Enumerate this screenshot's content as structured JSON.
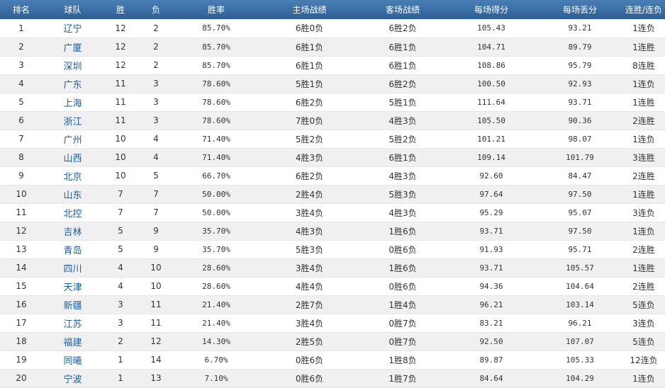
{
  "headers": [
    "排名",
    "球队",
    "胜",
    "负",
    "胜率",
    "主场战绩",
    "客场战绩",
    "每场得分",
    "每场丢分",
    "连胜/连负"
  ],
  "rows": [
    {
      "rank": "1",
      "team": "辽宁",
      "wins": "12",
      "losses": "2",
      "pct": "85.70%",
      "home": "6胜0负",
      "away": "6胜2负",
      "ppg": "105.43",
      "papg": "93.21",
      "streak": "1连负"
    },
    {
      "rank": "2",
      "team": "广厦",
      "wins": "12",
      "losses": "2",
      "pct": "85.70%",
      "home": "6胜1负",
      "away": "6胜1负",
      "ppg": "104.71",
      "papg": "89.79",
      "streak": "1连胜"
    },
    {
      "rank": "3",
      "team": "深圳",
      "wins": "12",
      "losses": "2",
      "pct": "85.70%",
      "home": "6胜1负",
      "away": "6胜1负",
      "ppg": "108.86",
      "papg": "95.79",
      "streak": "8连胜"
    },
    {
      "rank": "4",
      "team": "广东",
      "wins": "11",
      "losses": "3",
      "pct": "78.60%",
      "home": "5胜1负",
      "away": "6胜2负",
      "ppg": "100.50",
      "papg": "92.93",
      "streak": "1连负"
    },
    {
      "rank": "5",
      "team": "上海",
      "wins": "11",
      "losses": "3",
      "pct": "78.60%",
      "home": "6胜2负",
      "away": "5胜1负",
      "ppg": "111.64",
      "papg": "93.71",
      "streak": "1连胜"
    },
    {
      "rank": "6",
      "team": "浙江",
      "wins": "11",
      "losses": "3",
      "pct": "78.60%",
      "home": "7胜0负",
      "away": "4胜3负",
      "ppg": "105.50",
      "papg": "90.36",
      "streak": "2连胜"
    },
    {
      "rank": "7",
      "team": "广州",
      "wins": "10",
      "losses": "4",
      "pct": "71.40%",
      "home": "5胜2负",
      "away": "5胜2负",
      "ppg": "101.21",
      "papg": "98.07",
      "streak": "1连负"
    },
    {
      "rank": "8",
      "team": "山西",
      "wins": "10",
      "losses": "4",
      "pct": "71.40%",
      "home": "4胜3负",
      "away": "6胜1负",
      "ppg": "109.14",
      "papg": "101.79",
      "streak": "3连胜"
    },
    {
      "rank": "9",
      "team": "北京",
      "wins": "10",
      "losses": "5",
      "pct": "66.70%",
      "home": "6胜2负",
      "away": "4胜3负",
      "ppg": "92.60",
      "papg": "84.47",
      "streak": "2连胜"
    },
    {
      "rank": "10",
      "team": "山东",
      "wins": "7",
      "losses": "7",
      "pct": "50.00%",
      "home": "2胜4负",
      "away": "5胜3负",
      "ppg": "97.64",
      "papg": "97.50",
      "streak": "1连胜"
    },
    {
      "rank": "11",
      "team": "北控",
      "wins": "7",
      "losses": "7",
      "pct": "50.00%",
      "home": "3胜4负",
      "away": "4胜3负",
      "ppg": "95.29",
      "papg": "95.07",
      "streak": "3连负"
    },
    {
      "rank": "12",
      "team": "吉林",
      "wins": "5",
      "losses": "9",
      "pct": "35.70%",
      "home": "4胜3负",
      "away": "1胜6负",
      "ppg": "93.71",
      "papg": "97.50",
      "streak": "1连负"
    },
    {
      "rank": "13",
      "team": "青岛",
      "wins": "5",
      "losses": "9",
      "pct": "35.70%",
      "home": "5胜3负",
      "away": "0胜6负",
      "ppg": "91.93",
      "papg": "95.71",
      "streak": "2连胜"
    },
    {
      "rank": "14",
      "team": "四川",
      "wins": "4",
      "losses": "10",
      "pct": "28.60%",
      "home": "3胜4负",
      "away": "1胜6负",
      "ppg": "93.71",
      "papg": "105.57",
      "streak": "1连胜"
    },
    {
      "rank": "15",
      "team": "天津",
      "wins": "4",
      "losses": "10",
      "pct": "28.60%",
      "home": "4胜4负",
      "away": "0胜6负",
      "ppg": "94.36",
      "papg": "104.64",
      "streak": "2连胜"
    },
    {
      "rank": "16",
      "team": "新疆",
      "wins": "3",
      "losses": "11",
      "pct": "21.40%",
      "home": "2胜7负",
      "away": "1胜4负",
      "ppg": "96.21",
      "papg": "103.14",
      "streak": "5连负"
    },
    {
      "rank": "17",
      "team": "江苏",
      "wins": "3",
      "losses": "11",
      "pct": "21.40%",
      "home": "3胜4负",
      "away": "0胜7负",
      "ppg": "83.21",
      "papg": "96.21",
      "streak": "3连负"
    },
    {
      "rank": "18",
      "team": "福建",
      "wins": "2",
      "losses": "12",
      "pct": "14.30%",
      "home": "2胜5负",
      "away": "0胜7负",
      "ppg": "92.50",
      "papg": "107.07",
      "streak": "5连负"
    },
    {
      "rank": "19",
      "team": "同曦",
      "wins": "1",
      "losses": "14",
      "pct": "6.70%",
      "home": "0胜6负",
      "away": "1胜8负",
      "ppg": "89.87",
      "papg": "105.33",
      "streak": "12连负"
    },
    {
      "rank": "20",
      "team": "宁波",
      "wins": "1",
      "losses": "13",
      "pct": "7.10%",
      "home": "0胜6负",
      "away": "1胜7负",
      "ppg": "84.64",
      "papg": "104.29",
      "streak": "1连负"
    }
  ],
  "colors": {
    "header_bg": "#3a6fa6",
    "header_text": "#ffffff",
    "team_link": "#1a5fa8",
    "stripe": "#f0f0f0"
  }
}
